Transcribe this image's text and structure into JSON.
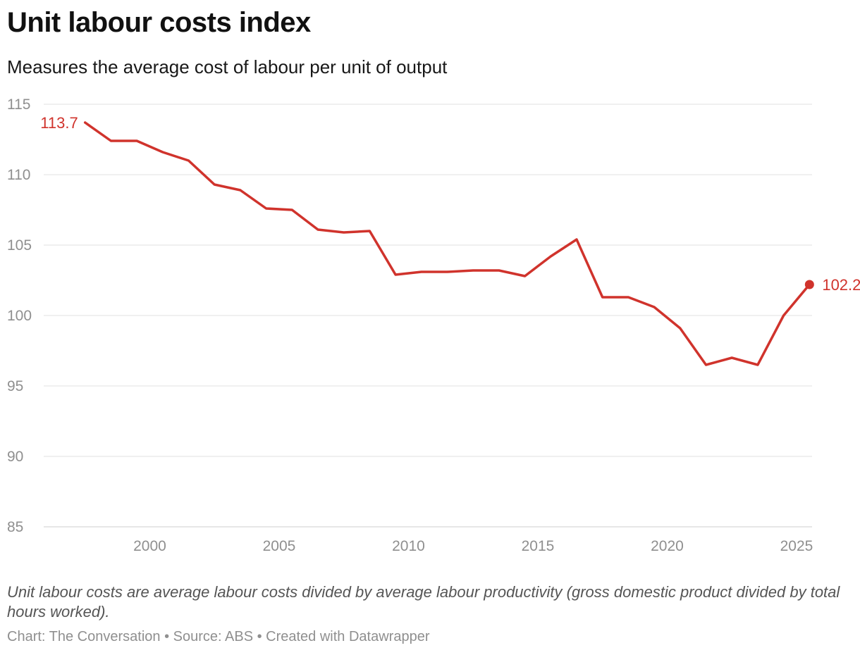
{
  "header": {
    "title": "Unit labour costs index",
    "subtitle": "Measures the average cost of labour per unit of output"
  },
  "footer": {
    "note": "Unit labour costs are average labour costs divided by average labour productivity (gross domestic product divided by total hours worked).",
    "credits": "Chart: The Conversation • Source: ABS • Created with Datawrapper"
  },
  "colors": {
    "line": "#d0332c",
    "grid": "#e0e0e0",
    "axis_text": "#8f8f8f"
  },
  "chart_data": {
    "type": "line",
    "title": "Unit labour costs index",
    "subtitle": "Measures the average cost of labour per unit of output",
    "xlabel": "",
    "ylabel": "",
    "xlim": [
      1995.9,
      2025.6
    ],
    "ylim": [
      85,
      115
    ],
    "y_ticks": [
      85,
      90,
      95,
      100,
      105,
      110,
      115
    ],
    "x_ticks": [
      2000,
      2005,
      2010,
      2015,
      2020,
      2025
    ],
    "grid": true,
    "series": [
      {
        "name": "Unit labour costs index",
        "x": [
          1997.5,
          1998.5,
          1999.5,
          2000.5,
          2001.5,
          2002.5,
          2003.5,
          2004.5,
          2005.5,
          2006.5,
          2007.5,
          2008.5,
          2009.5,
          2010.5,
          2011.5,
          2012.5,
          2013.5,
          2014.5,
          2015.5,
          2016.5,
          2017.5,
          2018.5,
          2019.5,
          2020.5,
          2021.5,
          2022.5,
          2023.5,
          2024.5,
          2025.5
        ],
        "values": [
          113.7,
          112.4,
          112.4,
          111.6,
          111.0,
          109.3,
          108.9,
          107.6,
          107.5,
          106.1,
          105.9,
          106.0,
          102.9,
          103.1,
          103.1,
          103.2,
          103.2,
          102.8,
          104.2,
          105.4,
          101.3,
          101.3,
          100.6,
          99.1,
          96.5,
          97.0,
          96.5,
          100.0,
          102.2
        ]
      }
    ],
    "annotations": [
      {
        "label": "113.7",
        "x": 1997.5,
        "y": 113.7,
        "position": "left"
      },
      {
        "label": "102.2",
        "x": 2025.5,
        "y": 102.2,
        "position": "right"
      }
    ]
  }
}
